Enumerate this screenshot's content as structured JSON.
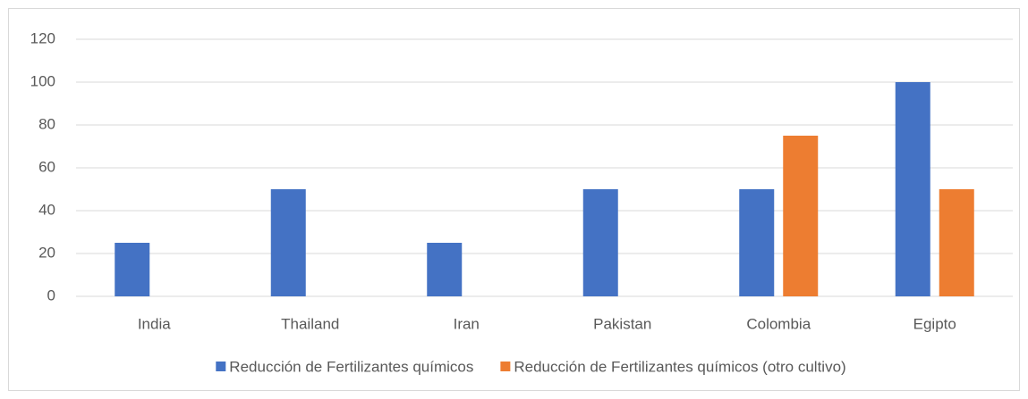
{
  "chart_data": {
    "type": "bar",
    "categories": [
      "India",
      "Thailand",
      "Iran",
      "Pakistan",
      "Colombia",
      "Egipto"
    ],
    "series": [
      {
        "name": "Reducción de Fertilizantes químicos",
        "color": "#4472c4",
        "values": [
          25,
          50,
          25,
          50,
          50,
          100
        ]
      },
      {
        "name": "Reducción de Fertilizantes químicos (otro cultivo)",
        "color": "#ed7d31",
        "values": [
          null,
          null,
          null,
          null,
          75,
          50
        ]
      }
    ],
    "ylim": [
      0,
      120
    ],
    "yticks": [
      0,
      20,
      40,
      60,
      80,
      100,
      120
    ],
    "grid": true,
    "legend": "bottom"
  }
}
